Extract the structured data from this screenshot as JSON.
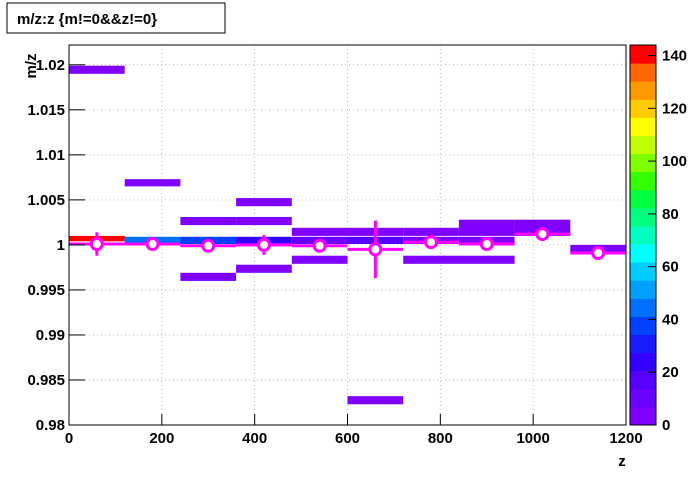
{
  "chart_data": {
    "type": "histogram2d",
    "title": "m/z:z {m!=0&&z!=0}",
    "x_label": "z",
    "y_label": "m/z",
    "xlim": [
      0,
      1200
    ],
    "xticks": [
      0,
      200,
      400,
      600,
      800,
      1000,
      1200
    ],
    "ylim": [
      0.98,
      1.0222
    ],
    "yticks": [
      0.98,
      0.985,
      0.99,
      0.995,
      1,
      1.005,
      1.01,
      1.015,
      1.02
    ],
    "zlim": [
      0,
      144
    ],
    "zticks": [
      0,
      20,
      40,
      60,
      80,
      100,
      120,
      140
    ],
    "grid": true,
    "palette": [
      "#7f00ff",
      "#6a00ff",
      "#5500ff",
      "#3300ff",
      "#1a1aff",
      "#0040ff",
      "#0070ff",
      "#00a0ff",
      "#00ccff",
      "#00ffff",
      "#00ffc0",
      "#00ff80",
      "#00ff40",
      "#33ff00",
      "#80ff00",
      "#c0ff00",
      "#ffff00",
      "#ffcc00",
      "#ff9900",
      "#ff6600",
      "#ff0000"
    ],
    "cells": [
      {
        "x0": 0,
        "x1": 120,
        "y0": 1.019,
        "y1": 1.0199,
        "count": 2
      },
      {
        "x0": 0,
        "x1": 120,
        "y0": 1.0004,
        "y1": 1.001,
        "count": 140
      },
      {
        "x0": 120,
        "x1": 240,
        "y0": 1.0001,
        "y1": 1.0009,
        "count": 45
      },
      {
        "x0": 240,
        "x1": 360,
        "y0": 1.0001,
        "y1": 1.0009,
        "count": 40
      },
      {
        "x0": 360,
        "x1": 480,
        "y0": 1.0001,
        "y1": 1.0009,
        "count": 25
      },
      {
        "x0": 480,
        "x1": 600,
        "y0": 1.0001,
        "y1": 1.0009,
        "count": 10
      },
      {
        "x0": 600,
        "x1": 720,
        "y0": 1.0001,
        "y1": 1.0009,
        "count": 15
      },
      {
        "x0": 720,
        "x1": 840,
        "y0": 1.0001,
        "y1": 1.0009,
        "count": 5
      },
      {
        "x0": 840,
        "x1": 960,
        "y0": 1.0001,
        "y1": 1.0009,
        "count": 3
      },
      {
        "x0": 120,
        "x1": 240,
        "y0": 1.0065,
        "y1": 1.0073,
        "count": 2
      },
      {
        "x0": 240,
        "x1": 360,
        "y0": 1.0022,
        "y1": 1.0031,
        "count": 2
      },
      {
        "x0": 360,
        "x1": 480,
        "y0": 1.0043,
        "y1": 1.0052,
        "count": 2
      },
      {
        "x0": 360,
        "x1": 480,
        "y0": 1.0022,
        "y1": 1.0031,
        "count": 2
      },
      {
        "x0": 480,
        "x1": 600,
        "y0": 1.001,
        "y1": 1.0019,
        "count": 3
      },
      {
        "x0": 600,
        "x1": 720,
        "y0": 1.001,
        "y1": 1.0019,
        "count": 3
      },
      {
        "x0": 720,
        "x1": 840,
        "y0": 1.001,
        "y1": 1.0019,
        "count": 3
      },
      {
        "x0": 840,
        "x1": 960,
        "y0": 1.001,
        "y1": 1.0028,
        "count": 3
      },
      {
        "x0": 960,
        "x1": 1080,
        "y0": 1.001,
        "y1": 1.0028,
        "count": 3
      },
      {
        "x0": 240,
        "x1": 360,
        "y0": 0.996,
        "y1": 0.9969,
        "count": 2
      },
      {
        "x0": 360,
        "x1": 480,
        "y0": 0.9969,
        "y1": 0.9978,
        "count": 2
      },
      {
        "x0": 480,
        "x1": 600,
        "y0": 0.9979,
        "y1": 0.9988,
        "count": 2
      },
      {
        "x0": 720,
        "x1": 960,
        "y0": 0.9979,
        "y1": 0.9988,
        "count": 2
      },
      {
        "x0": 600,
        "x1": 720,
        "y0": 0.9823,
        "y1": 0.9832,
        "count": 2
      },
      {
        "x0": 1080,
        "x1": 1200,
        "y0": 0.9991,
        "y1": 1.0,
        "count": 2
      }
    ],
    "profile": {
      "color": "#ff00ff",
      "x": [
        60,
        180,
        300,
        420,
        540,
        660,
        780,
        900,
        1020,
        1140
      ],
      "values": [
        1.0001,
        1.0001,
        0.9999,
        1.0,
        0.9999,
        0.9995,
        1.0003,
        1.0001,
        1.0012,
        0.9991
      ],
      "errors": [
        0.0013,
        0.0003,
        0.0003,
        0.0011,
        0.0003,
        0.0032,
        0.0003,
        0.0007,
        0.0003,
        0.0002
      ],
      "half_width": 60
    }
  }
}
